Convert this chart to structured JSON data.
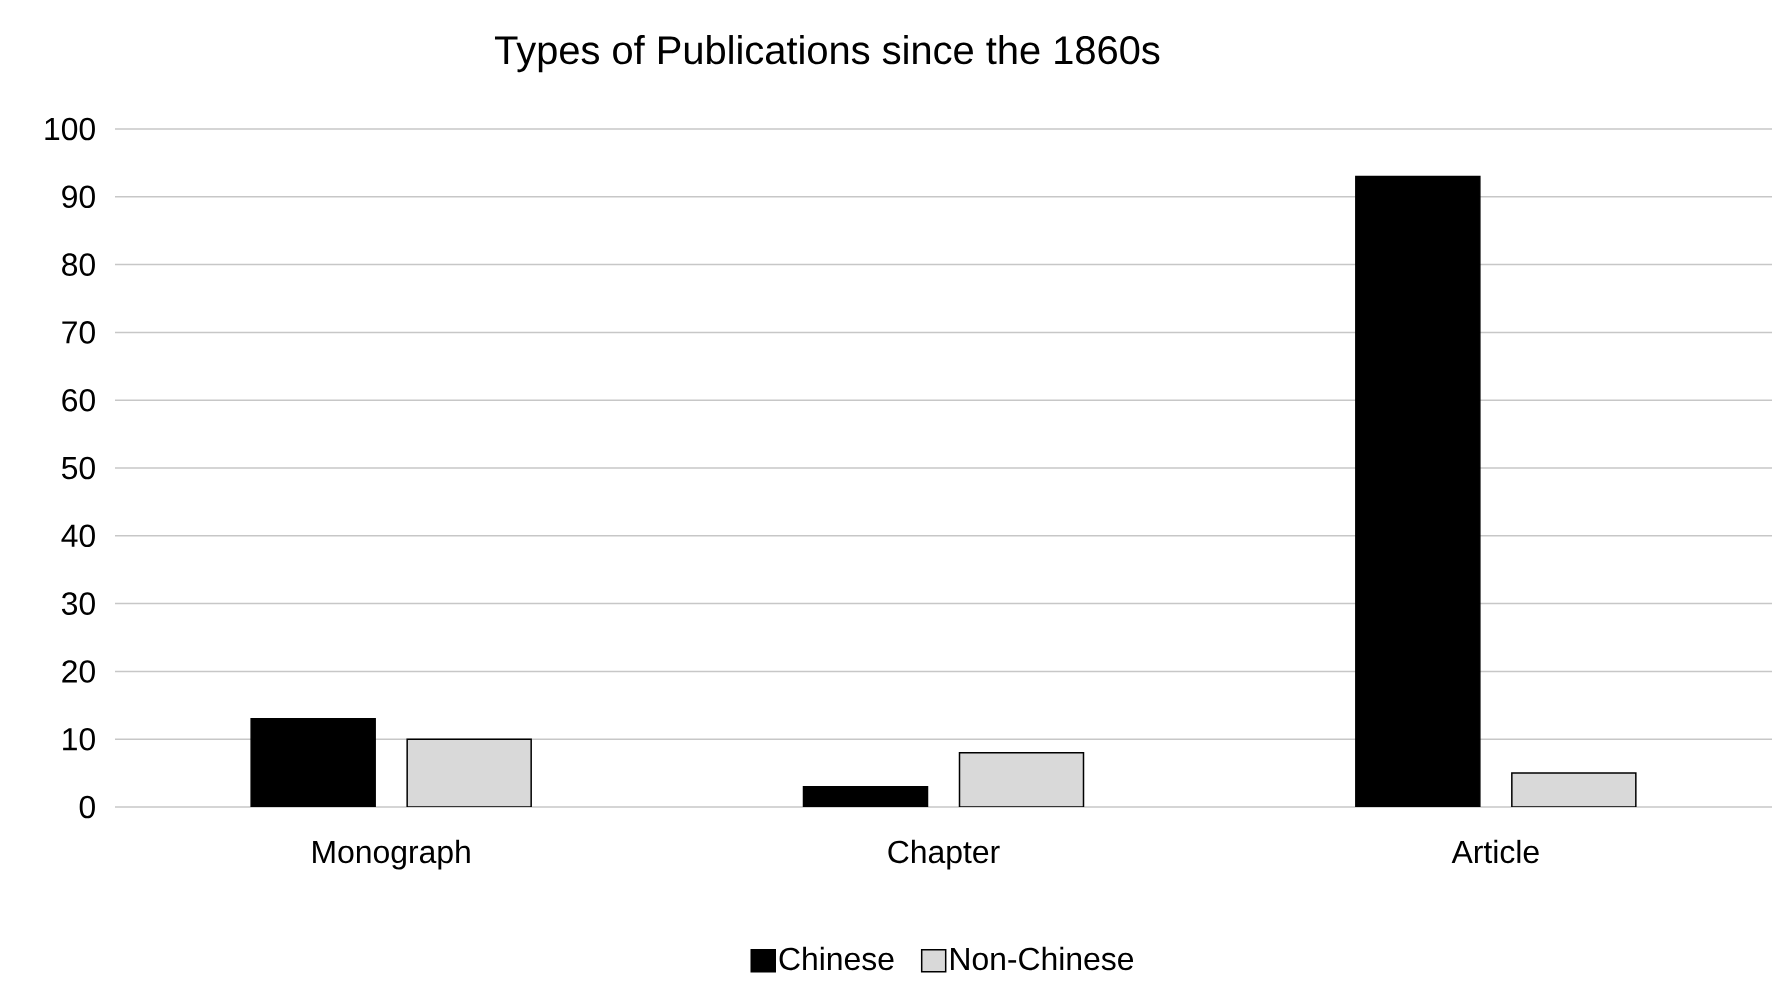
{
  "chart_data": {
    "type": "bar",
    "title": "Types of Publications since the 1860s",
    "categories": [
      "Monograph",
      "Chapter",
      "Article"
    ],
    "series": [
      {
        "name": "Chinese",
        "color": "#000000",
        "values": [
          13,
          3,
          93
        ]
      },
      {
        "name": "Non-Chinese",
        "color": "#d9d9d9",
        "values": [
          10,
          8,
          5
        ]
      }
    ],
    "ylim": [
      0,
      100
    ],
    "yticks": [
      0,
      10,
      20,
      30,
      40,
      50,
      60,
      70,
      80,
      90,
      100
    ],
    "grid": "y",
    "legend": "bottom"
  }
}
